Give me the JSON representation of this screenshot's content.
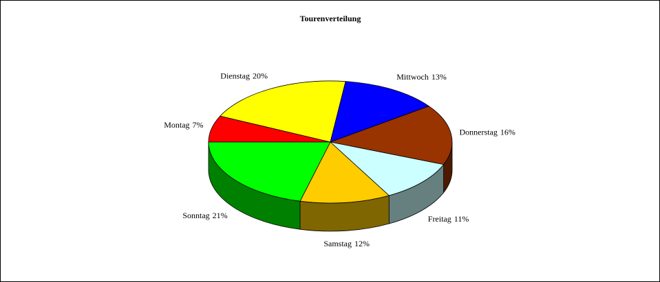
{
  "chart_data": {
    "type": "pie3d",
    "title": "Tourenverteilung",
    "categories": [
      "Montag",
      "Dienstag",
      "Mittwoch",
      "Donnerstag",
      "Freitag",
      "Samstag",
      "Sonntag"
    ],
    "values": [
      7,
      20,
      13,
      16,
      11,
      12,
      21
    ],
    "value_labels": [
      "7%",
      "20%",
      "13%",
      "16%",
      "11%",
      "12%",
      "21%"
    ],
    "colors": [
      "#ff0000",
      "#ffff00",
      "#0000ff",
      "#993300",
      "#ccffff",
      "#ffcc00",
      "#00ff00"
    ]
  }
}
